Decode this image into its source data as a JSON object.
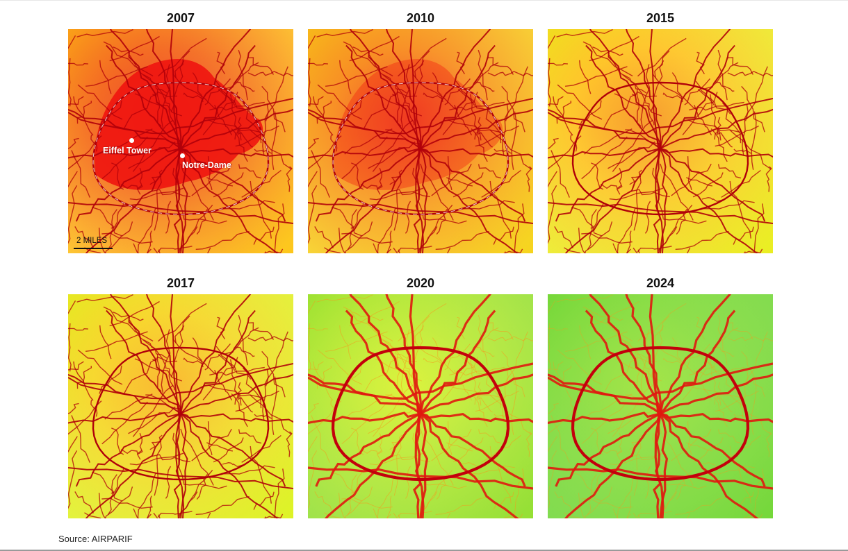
{
  "panels": [
    {
      "year": "2007",
      "pollution": 1.0
    },
    {
      "year": "2010",
      "pollution": 0.88
    },
    {
      "year": "2015",
      "pollution": 0.66
    },
    {
      "year": "2017",
      "pollution": 0.55
    },
    {
      "year": "2020",
      "pollution": 0.22
    },
    {
      "year": "2024",
      "pollution": 0.06
    }
  ],
  "landmarks": {
    "eiffel": "Eiffel Tower",
    "notre_dame": "Notre-Dame"
  },
  "scale": "2 MILES",
  "source": "Source: AIRPARIF"
}
